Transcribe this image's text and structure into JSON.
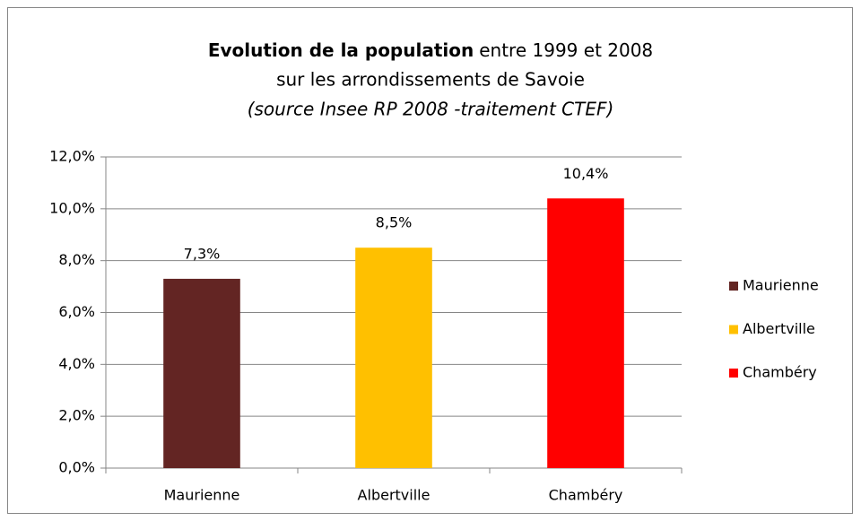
{
  "chart_data": {
    "type": "bar",
    "title": [
      "Evolution de la population",
      "entre 1999 et 2008"
    ],
    "subtitle": "sur les arrondissements de Savoie",
    "note": "(source Insee RP 2008 -traitement CTEF)",
    "categories": [
      "Maurienne",
      "Albertville",
      "Chambéry"
    ],
    "values": [
      7.3,
      8.5,
      10.4
    ],
    "value_labels": [
      "7,3%",
      "8,5%",
      "10,4%"
    ],
    "colors": [
      "#632523",
      "#ffc000",
      "#ff0000"
    ],
    "ylim": [
      0,
      12
    ],
    "yticks": [
      {
        "value": 0,
        "label": "0,0%"
      },
      {
        "value": 2,
        "label": "2,0%"
      },
      {
        "value": 4,
        "label": "4,0%"
      },
      {
        "value": 6,
        "label": "6,0%"
      },
      {
        "value": 8,
        "label": "8,0%"
      },
      {
        "value": 10,
        "label": "10,0%"
      },
      {
        "value": 12,
        "label": "12,0%"
      }
    ],
    "grid": true,
    "legend": "right"
  }
}
